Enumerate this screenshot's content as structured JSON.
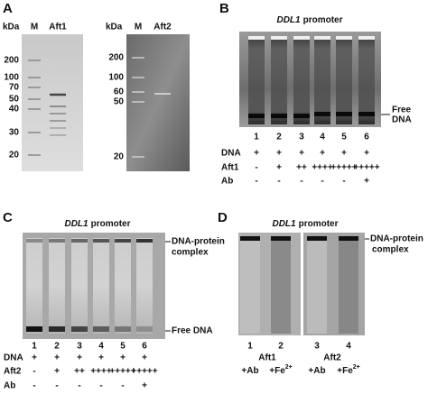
{
  "panel_a": {
    "label": "A",
    "gel_1": {
      "unit": "kDa",
      "lanes": [
        "M",
        "Aft1"
      ],
      "markers": [
        "200",
        "100",
        "70",
        "50",
        "40",
        "30",
        "20"
      ]
    },
    "gel_2": {
      "unit": "kDa",
      "lanes": [
        "M",
        "Aft2"
      ],
      "markers": [
        "200",
        "100",
        "60",
        "50",
        "20"
      ]
    }
  },
  "panel_b": {
    "label": "B",
    "title": {
      "gene": "DDL1",
      "text": "promoter"
    },
    "free_dna": [
      "Free",
      "DNA"
    ],
    "lanes": [
      "1",
      "2",
      "3",
      "4",
      "5",
      "6"
    ],
    "rows": [
      {
        "name": "DNA",
        "values": [
          "+",
          "+",
          "+",
          "+",
          "+",
          "+"
        ]
      },
      {
        "name": "Aft1",
        "values": [
          "-",
          "+",
          "++",
          "++++",
          "+++++",
          "+++++"
        ]
      },
      {
        "name": "Ab",
        "values": [
          "-",
          "-",
          "-",
          "-",
          "-",
          "+"
        ]
      }
    ]
  },
  "panel_c": {
    "label": "C",
    "title": {
      "gene": "DDL1",
      "text": "promoter"
    },
    "complex": [
      "DNA-protein",
      "complex"
    ],
    "free_dna": "Free DNA",
    "lanes": [
      "1",
      "2",
      "3",
      "4",
      "5",
      "6"
    ],
    "rows": [
      {
        "name": "DNA",
        "values": [
          "+",
          "+",
          "+",
          "+",
          "+",
          "+"
        ]
      },
      {
        "name": "Aft2",
        "values": [
          "-",
          "+",
          "++",
          "++++",
          "+++++",
          "+++++"
        ]
      },
      {
        "name": "Ab",
        "values": [
          "-",
          "-",
          "-",
          "-",
          "-",
          "+"
        ]
      }
    ]
  },
  "panel_d": {
    "label": "D",
    "title": {
      "gene": "DDL1",
      "text": "promoter"
    },
    "complex": [
      "DNA-protein",
      "complex"
    ],
    "lanes": [
      "1",
      "2",
      "3",
      "4"
    ],
    "proteins": [
      "Aft1",
      "Aft2"
    ],
    "conditions": [
      {
        "text": "+Ab"
      },
      {
        "text": "+Fe",
        "sup": "2+"
      },
      {
        "text": "+Ab"
      },
      {
        "text": "+Fe",
        "sup": "2+"
      }
    ]
  }
}
